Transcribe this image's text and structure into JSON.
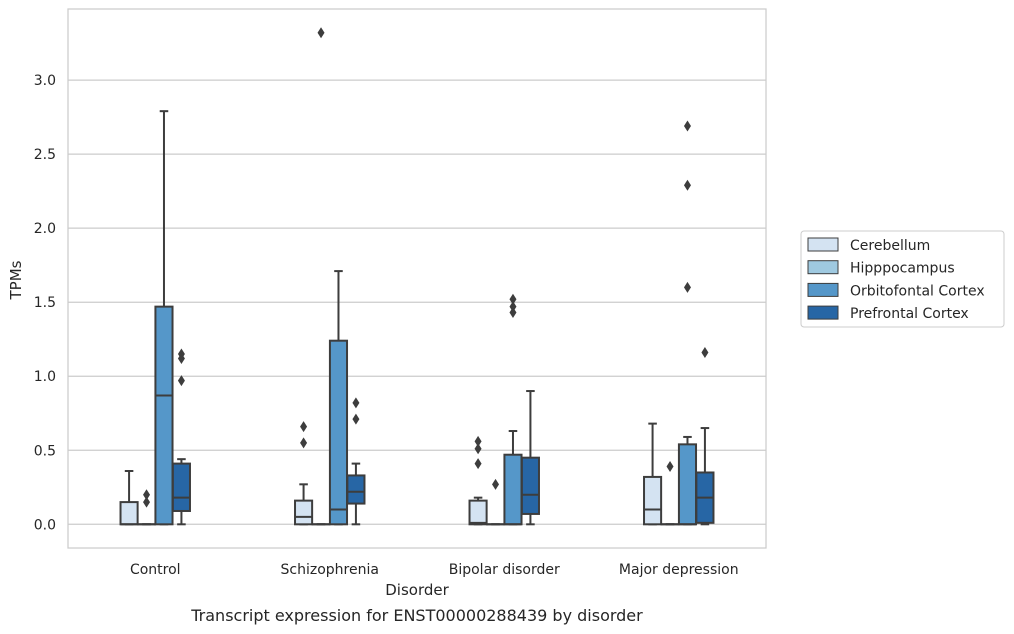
{
  "chart_data": {
    "type": "box",
    "title": "",
    "caption": "Transcript expression for ENST00000288439 by disorder",
    "xlabel": "Disorder",
    "ylabel": "TPMs",
    "ylim": [
      -0.16,
      3.48
    ],
    "yticks": [
      "0.0",
      "0.5",
      "1.0",
      "1.5",
      "2.0",
      "2.5",
      "3.0"
    ],
    "grid": true,
    "legend_position": "right",
    "categories": [
      "Control",
      "Schizophrenia",
      "Bipolar disorder",
      "Major depression"
    ],
    "series": [
      {
        "name": "Cerebellum",
        "color": "#d4e3f2",
        "boxes": [
          {
            "whislo": 0.0,
            "q1": 0.0,
            "med": 0.0,
            "q3": 0.15,
            "whishi": 0.36,
            "fliers": []
          },
          {
            "whislo": 0.0,
            "q1": 0.0,
            "med": 0.05,
            "q3": 0.16,
            "whishi": 0.27,
            "fliers": [
              0.55,
              0.66
            ]
          },
          {
            "whislo": 0.0,
            "q1": 0.0,
            "med": 0.01,
            "q3": 0.16,
            "whishi": 0.18,
            "fliers": [
              0.41,
              0.51,
              0.56
            ]
          },
          {
            "whislo": 0.0,
            "q1": 0.0,
            "med": 0.1,
            "q3": 0.32,
            "whishi": 0.68,
            "fliers": []
          }
        ]
      },
      {
        "name": "Hipppocampus",
        "color": "#9fc9e0",
        "boxes": [
          {
            "whislo": 0.0,
            "q1": 0.0,
            "med": 0.0,
            "q3": 0.0,
            "whishi": 0.0,
            "fliers": [
              0.15,
              0.2
            ]
          },
          {
            "whislo": 0.0,
            "q1": 0.0,
            "med": 0.0,
            "q3": 0.0,
            "whishi": 0.0,
            "fliers": [
              3.32
            ]
          },
          {
            "whislo": 0.0,
            "q1": 0.0,
            "med": 0.0,
            "q3": 0.0,
            "whishi": 0.0,
            "fliers": [
              0.27
            ]
          },
          {
            "whislo": 0.0,
            "q1": 0.0,
            "med": 0.0,
            "q3": 0.0,
            "whishi": 0.0,
            "fliers": [
              0.39
            ]
          }
        ]
      },
      {
        "name": "Orbitofontal Cortex",
        "color": "#5597c9",
        "boxes": [
          {
            "whislo": 0.0,
            "q1": 0.0,
            "med": 0.87,
            "q3": 1.47,
            "whishi": 2.79,
            "fliers": []
          },
          {
            "whislo": 0.0,
            "q1": 0.0,
            "med": 0.1,
            "q3": 1.24,
            "whishi": 1.71,
            "fliers": []
          },
          {
            "whislo": 0.0,
            "q1": 0.0,
            "med": 0.0,
            "q3": 0.47,
            "whishi": 0.63,
            "fliers": [
              1.43,
              1.47,
              1.52
            ]
          },
          {
            "whislo": 0.0,
            "q1": 0.0,
            "med": 0.0,
            "q3": 0.54,
            "whishi": 0.59,
            "fliers": [
              1.6,
              2.29,
              2.69
            ]
          }
        ]
      },
      {
        "name": "Prefrontal Cortex",
        "color": "#2766a5",
        "boxes": [
          {
            "whislo": 0.0,
            "q1": 0.09,
            "med": 0.18,
            "q3": 0.41,
            "whishi": 0.44,
            "fliers": [
              0.97,
              1.12,
              1.15
            ]
          },
          {
            "whislo": 0.0,
            "q1": 0.14,
            "med": 0.22,
            "q3": 0.33,
            "whishi": 0.41,
            "fliers": [
              0.71,
              0.82
            ]
          },
          {
            "whislo": 0.0,
            "q1": 0.07,
            "med": 0.2,
            "q3": 0.45,
            "whishi": 0.9,
            "fliers": []
          },
          {
            "whislo": 0.0,
            "q1": 0.01,
            "med": 0.18,
            "q3": 0.35,
            "whishi": 0.65,
            "fliers": [
              1.16
            ]
          }
        ]
      }
    ]
  }
}
